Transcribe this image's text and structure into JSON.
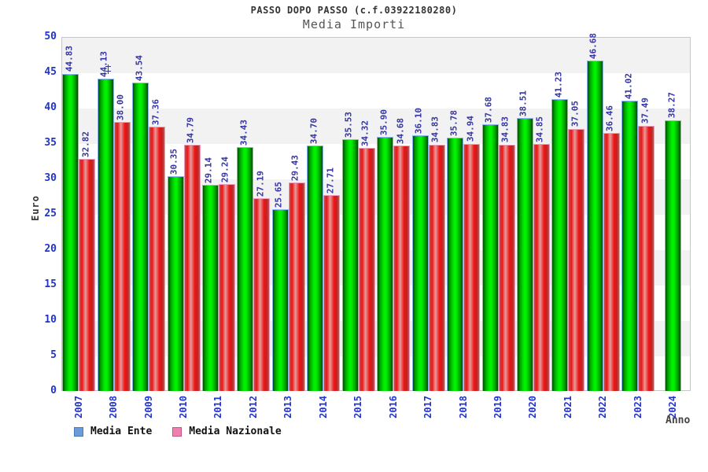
{
  "header": {
    "title": "PASSO DOPO PASSO (c.f.03922180280)",
    "subtitle": "Media Importi"
  },
  "axes": {
    "y_label": "Euro",
    "x_label": "Anno",
    "y_ticks": [
      "0",
      "5",
      "10",
      "15",
      "20",
      "25",
      "30",
      "35",
      "40",
      "45",
      "50"
    ]
  },
  "legend": [
    {
      "label": "Media Ente",
      "color": "#6b9bd8",
      "border": "#4a7ab5"
    },
    {
      "label": "Media Nazionale",
      "color": "#ee7fae",
      "border": "#c05585"
    }
  ],
  "colors": {
    "media_ente_bar": "#00cc00",
    "media_nazionale_bar": "#ee2222",
    "axis_text": "#2233cc",
    "value_label_text": "#3434a4",
    "band_gray": "#f2f2f2"
  },
  "chart_data": {
    "type": "bar",
    "title": "PASSO DOPO PASSO (c.f.03922180280)",
    "subtitle": "Media Importi",
    "xlabel": "Anno",
    "ylabel": "Euro",
    "ylim": [
      0,
      50
    ],
    "ytick_step": 5,
    "grid": "alternating horizontal gray/white bands every 5 units",
    "legend_position": "bottom-left",
    "categories": [
      "2007",
      "2008",
      "2009",
      "2010",
      "2011",
      "2012",
      "2013",
      "2014",
      "2015",
      "2016",
      "2017",
      "2018",
      "2019",
      "2020",
      "2021",
      "2022",
      "2023",
      "2024"
    ],
    "series": [
      {
        "name": "Media Ente",
        "bar_style": "green cylinder gradient, light-blue edge",
        "values": [
          44.83,
          44.13,
          43.54,
          30.35,
          29.14,
          34.43,
          25.65,
          34.7,
          35.53,
          35.9,
          36.1,
          35.78,
          37.68,
          38.51,
          41.23,
          46.68,
          41.02,
          38.27
        ],
        "labels": [
          "44.83",
          "44.13",
          "43.54",
          "30.35",
          "29.14",
          "34.43",
          "25.65",
          "34.70",
          "35.53",
          "35.90",
          "36.10",
          "35.78",
          "37.68",
          "38.51",
          "41.23",
          "46.68",
          "41.02",
          "38.27"
        ]
      },
      {
        "name": "Media Nazionale",
        "bar_style": "red cylinder gradient, pink edge",
        "values": [
          32.82,
          38.0,
          37.36,
          34.79,
          29.24,
          27.19,
          29.43,
          27.71,
          34.32,
          34.68,
          34.83,
          34.94,
          34.83,
          34.85,
          37.05,
          36.46,
          37.49,
          null
        ],
        "labels": [
          "32.82",
          "38.00",
          "37.36",
          "34.79",
          "29.24",
          "27.19",
          "29.43",
          "27.71",
          "34.32",
          "34.68",
          "34.83",
          "34.94",
          "34.83",
          "34.85",
          "37.05",
          "36.46",
          "37.49",
          null
        ]
      }
    ]
  }
}
